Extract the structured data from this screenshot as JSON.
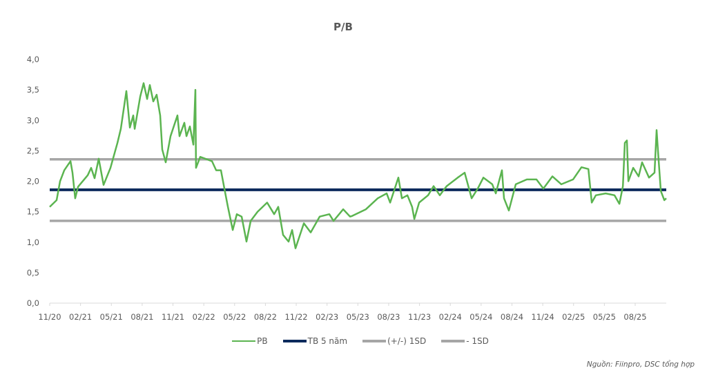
{
  "chart_data": {
    "type": "line",
    "title": "P/B",
    "source": "Nguồn: Fiinpro, DSC tổng hợp",
    "xlabel": "",
    "ylabel": "",
    "ylim": [
      0,
      4
    ],
    "yticks": [
      "0,0",
      "0,5",
      "1,0",
      "1,5",
      "2,0",
      "2,5",
      "3,0",
      "3,5",
      "4,0"
    ],
    "x_unit": "months since 11/20",
    "xlim": [
      0,
      60
    ],
    "xticks": [
      "11/20",
      "02/21",
      "05/21",
      "08/21",
      "11/21",
      "02/22",
      "05/22",
      "08/22",
      "11/22",
      "02/23",
      "05/23",
      "08/23",
      "11/23",
      "02/24",
      "05/24",
      "08/24",
      "11/24",
      "02/25",
      "05/25",
      "08/25"
    ],
    "grid": false,
    "legend_position": "bottom",
    "series": [
      {
        "name": "PB",
        "color": "#5bb450",
        "kind": "line",
        "points": [
          [
            0,
            1.58
          ],
          [
            0.67,
            1.69
          ],
          [
            1.01,
            2.0
          ],
          [
            1.42,
            2.18
          ],
          [
            2.02,
            2.33
          ],
          [
            2.22,
            2.14
          ],
          [
            2.48,
            1.72
          ],
          [
            2.76,
            1.91
          ],
          [
            3.7,
            2.1
          ],
          [
            4.03,
            2.22
          ],
          [
            4.37,
            2.05
          ],
          [
            4.77,
            2.37
          ],
          [
            5.24,
            1.94
          ],
          [
            5.91,
            2.22
          ],
          [
            6.59,
            2.63
          ],
          [
            6.92,
            2.86
          ],
          [
            7.46,
            3.48
          ],
          [
            7.8,
            2.88
          ],
          [
            8.13,
            3.08
          ],
          [
            8.27,
            2.86
          ],
          [
            8.81,
            3.39
          ],
          [
            9.14,
            3.61
          ],
          [
            9.48,
            3.35
          ],
          [
            9.74,
            3.58
          ],
          [
            10.08,
            3.31
          ],
          [
            10.41,
            3.42
          ],
          [
            10.75,
            3.08
          ],
          [
            10.95,
            2.52
          ],
          [
            11.29,
            2.31
          ],
          [
            11.76,
            2.74
          ],
          [
            12.43,
            3.08
          ],
          [
            12.63,
            2.74
          ],
          [
            13.1,
            2.96
          ],
          [
            13.31,
            2.74
          ],
          [
            13.64,
            2.9
          ],
          [
            13.98,
            2.6
          ],
          [
            14.18,
            3.5
          ],
          [
            14.24,
            2.22
          ],
          [
            14.65,
            2.4
          ],
          [
            15.79,
            2.33
          ],
          [
            16.2,
            2.18
          ],
          [
            16.66,
            2.18
          ],
          [
            17.0,
            1.88
          ],
          [
            17.34,
            1.58
          ],
          [
            17.81,
            1.2
          ],
          [
            18.21,
            1.46
          ],
          [
            18.68,
            1.42
          ],
          [
            19.15,
            1.01
          ],
          [
            19.56,
            1.35
          ],
          [
            20.23,
            1.5
          ],
          [
            21.16,
            1.65
          ],
          [
            21.84,
            1.46
          ],
          [
            22.24,
            1.58
          ],
          [
            22.71,
            1.12
          ],
          [
            23.25,
            1.01
          ],
          [
            23.59,
            1.2
          ],
          [
            23.92,
            0.9
          ],
          [
            24.73,
            1.31
          ],
          [
            25.4,
            1.16
          ],
          [
            26.27,
            1.42
          ],
          [
            27.21,
            1.46
          ],
          [
            27.62,
            1.35
          ],
          [
            28.56,
            1.54
          ],
          [
            29.23,
            1.42
          ],
          [
            29.43,
            1.43
          ],
          [
            30.77,
            1.54
          ],
          [
            31.92,
            1.72
          ],
          [
            32.79,
            1.8
          ],
          [
            33.13,
            1.65
          ],
          [
            33.93,
            2.06
          ],
          [
            34.27,
            1.72
          ],
          [
            34.81,
            1.77
          ],
          [
            35.27,
            1.58
          ],
          [
            35.48,
            1.38
          ],
          [
            35.95,
            1.65
          ],
          [
            36.82,
            1.77
          ],
          [
            37.36,
            1.92
          ],
          [
            37.96,
            1.77
          ],
          [
            38.63,
            1.92
          ],
          [
            39.71,
            2.06
          ],
          [
            40.38,
            2.14
          ],
          [
            41.06,
            1.72
          ],
          [
            41.66,
            1.88
          ],
          [
            42.2,
            2.06
          ],
          [
            43.07,
            1.95
          ],
          [
            43.41,
            1.8
          ],
          [
            44.01,
            2.18
          ],
          [
            44.21,
            1.72
          ],
          [
            44.68,
            1.52
          ],
          [
            45.35,
            1.95
          ],
          [
            46.43,
            2.03
          ],
          [
            47.37,
            2.03
          ],
          [
            48.04,
            1.88
          ],
          [
            48.92,
            2.08
          ],
          [
            49.79,
            1.95
          ],
          [
            50.93,
            2.03
          ],
          [
            51.75,
            2.23
          ],
          [
            52.42,
            2.2
          ],
          [
            52.75,
            1.65
          ],
          [
            53.15,
            1.77
          ],
          [
            54.1,
            1.8
          ],
          [
            54.96,
            1.77
          ],
          [
            55.44,
            1.63
          ],
          [
            55.78,
            1.92
          ],
          [
            55.97,
            2.63
          ],
          [
            56.17,
            2.67
          ],
          [
            56.31,
            2.0
          ],
          [
            56.78,
            2.22
          ],
          [
            57.31,
            2.08
          ],
          [
            57.65,
            2.31
          ],
          [
            58.32,
            2.06
          ],
          [
            58.86,
            2.14
          ],
          [
            59.06,
            2.84
          ],
          [
            59.2,
            2.48
          ],
          [
            59.47,
            1.84
          ],
          [
            59.81,
            1.69
          ],
          [
            60.0,
            1.72
          ]
        ]
      },
      {
        "name": "TB 5 năm",
        "color": "#0c2a5c",
        "kind": "hline",
        "value": 1.86
      },
      {
        "name": "(+/-) 1SD",
        "color": "#a6a6a6",
        "kind": "hline",
        "value": 2.36
      },
      {
        "name": "- 1SD",
        "color": "#a6a6a6",
        "kind": "hline",
        "value": 1.35
      }
    ]
  }
}
